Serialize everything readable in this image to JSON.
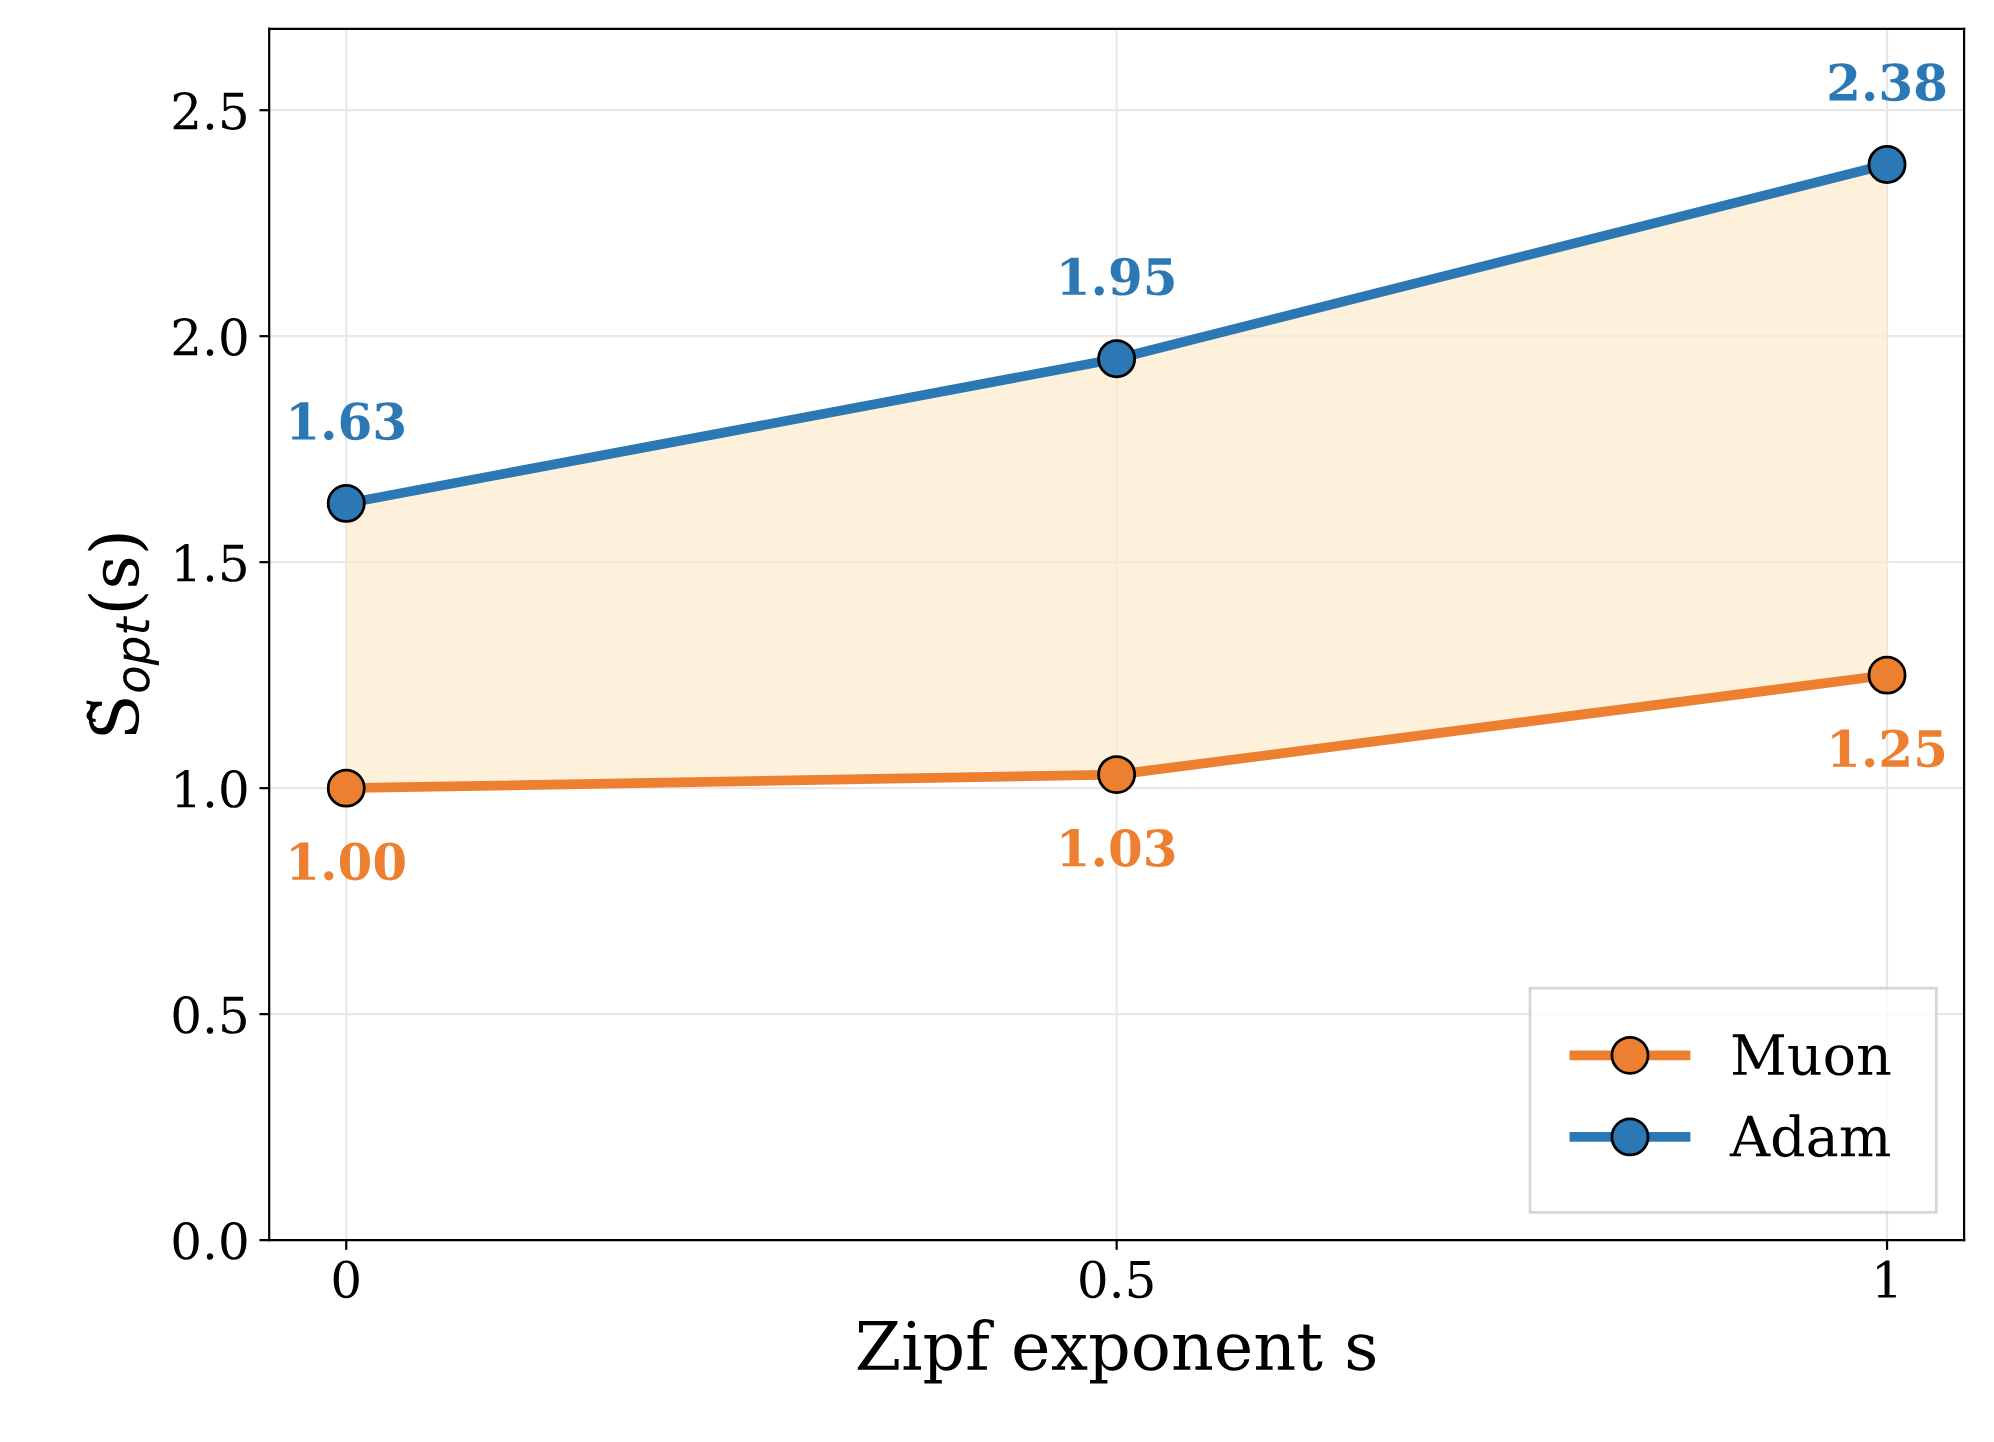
{
  "chart_data": {
    "type": "line",
    "xlabel": "Zipf exponent s",
    "ylabel": "S̃$_{opt}$(s)",
    "x": [
      0,
      0.5,
      1
    ],
    "series": [
      {
        "name": "Muon",
        "color": "#ed7f30",
        "values": [
          1.0,
          1.03,
          1.25
        ],
        "value_labels": [
          "1.00",
          "1.03",
          "1.25"
        ],
        "lower": [
          1.0,
          1.03,
          1.25
        ],
        "upper": [
          1.63,
          1.95,
          2.38
        ]
      },
      {
        "name": "Adam",
        "color": "#2b78b5",
        "values": [
          1.63,
          1.95,
          2.38
        ],
        "value_labels": [
          "1.63",
          "1.95",
          "2.38"
        ]
      }
    ],
    "xlim": [
      -0.05,
      1.05
    ],
    "xticks": [
      0,
      0.5,
      1
    ],
    "ylim": [
      0,
      2.68
    ],
    "yticks": [
      {
        "value": 0,
        "label": "0.0"
      },
      {
        "value": 0.5,
        "label": "0.5"
      },
      {
        "value": 1,
        "label": "1.0"
      },
      {
        "value": 1.5,
        "label": "1.5"
      },
      {
        "value": 2,
        "label": "2.0"
      },
      {
        "value": 2.5,
        "label": "2.5"
      }
    ],
    "grid": true,
    "legend": "bottom right",
    "marker": "circle",
    "line_style": "solid"
  }
}
